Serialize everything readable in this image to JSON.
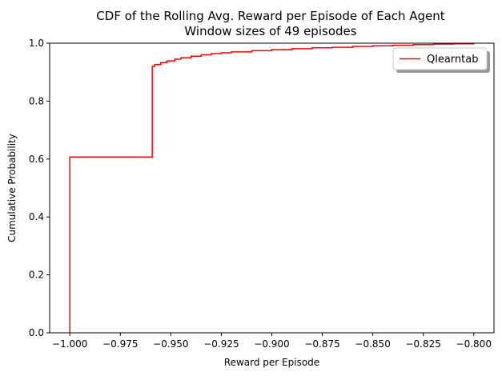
{
  "chart_data": {
    "type": "line",
    "title": "CDF of the Rolling Avg. Reward per Episode of Each Agent",
    "subtitle": "Window sizes of 49 episodes",
    "xlabel": "Reward per Episode",
    "ylabel": "Cumulative Probability",
    "xlim": [
      -1.01,
      -0.79
    ],
    "ylim": [
      0,
      1
    ],
    "xticks": [
      -1.0,
      -0.975,
      -0.95,
      -0.925,
      -0.9,
      -0.875,
      -0.85,
      -0.825,
      -0.8
    ],
    "xtick_labels": [
      "−1.000",
      "−0.975",
      "−0.950",
      "−0.925",
      "−0.900",
      "−0.875",
      "−0.850",
      "−0.825",
      "−0.800"
    ],
    "yticks": [
      0,
      0.2,
      0.4,
      0.6,
      0.8,
      1.0
    ],
    "ytick_labels": [
      "0.0",
      "0.2",
      "0.4",
      "0.6",
      "0.8",
      "1.0"
    ],
    "grid": false,
    "legend_position": "top-right",
    "series": [
      {
        "name": "Qlearntab",
        "color": "#ff0000",
        "step": true,
        "x": [
          -1.0,
          -1.0,
          -0.9592,
          -0.9592,
          -0.958,
          -0.955,
          -0.952,
          -0.948,
          -0.945,
          -0.94,
          -0.935,
          -0.93,
          -0.925,
          -0.92,
          -0.91,
          -0.9,
          -0.89,
          -0.88,
          -0.87,
          -0.86,
          -0.85,
          -0.84,
          -0.83,
          -0.82,
          -0.81,
          -0.8
        ],
        "y": [
          0.0,
          0.607,
          0.607,
          0.92,
          0.926,
          0.933,
          0.939,
          0.945,
          0.95,
          0.955,
          0.96,
          0.964,
          0.967,
          0.97,
          0.974,
          0.978,
          0.981,
          0.984,
          0.986,
          0.989,
          0.991,
          0.993,
          0.995,
          0.997,
          0.998,
          1.0
        ]
      }
    ]
  }
}
